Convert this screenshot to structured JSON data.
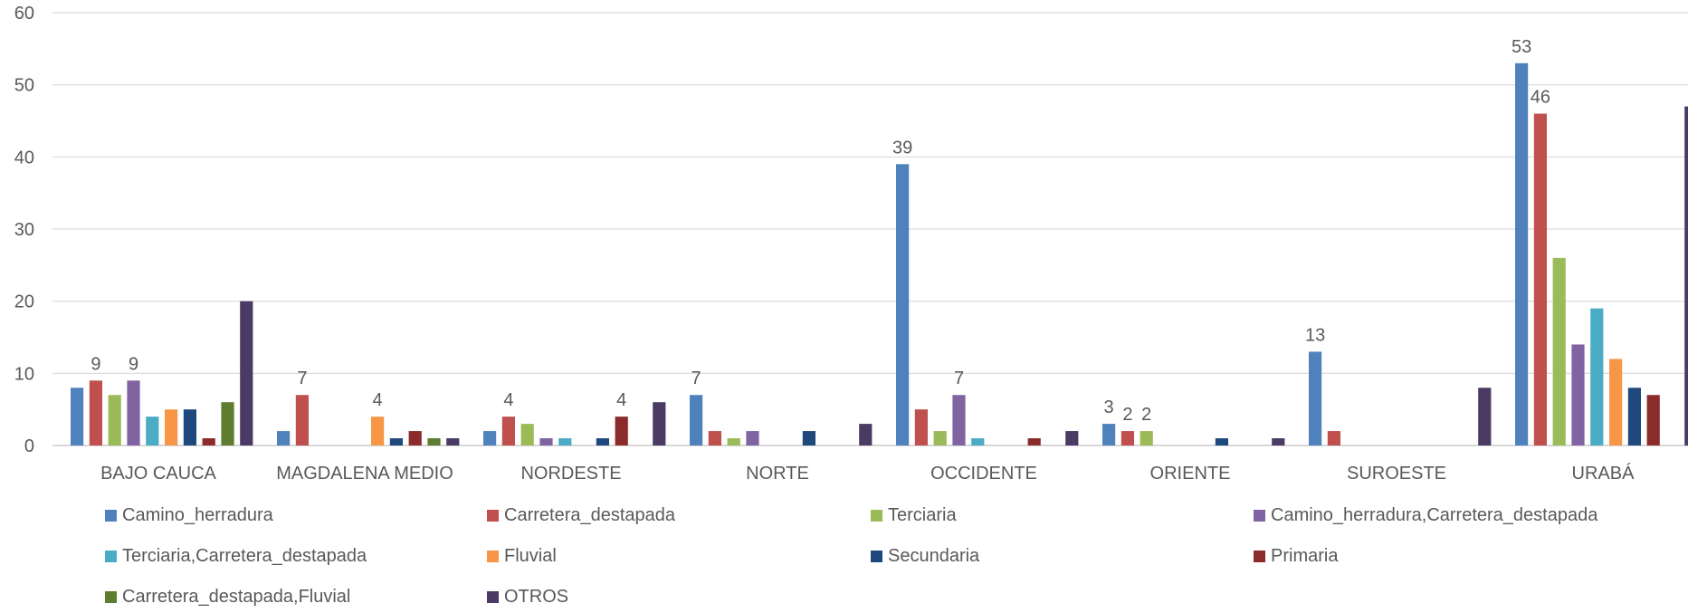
{
  "chart_data": {
    "type": "bar",
    "categories": [
      "BAJO CAUCA",
      "MAGDALENA MEDIO",
      "NORDESTE",
      "NORTE",
      "OCCIDENTE",
      "ORIENTE",
      "SUROESTE",
      "URABÁ"
    ],
    "ylim": [
      0,
      60
    ],
    "yticks": [
      0,
      10,
      20,
      30,
      40,
      50,
      60
    ],
    "grid": true,
    "legend_position": "bottom",
    "series": [
      {
        "name": "Camino_herradura",
        "color": "#4F81BD",
        "values": [
          8,
          2,
          2,
          7,
          39,
          3,
          13,
          53
        ]
      },
      {
        "name": "Carretera_destapada",
        "color": "#C0504D",
        "values": [
          9,
          7,
          4,
          2,
          5,
          2,
          2,
          46
        ]
      },
      {
        "name": "Terciaria",
        "color": "#9BBB59",
        "values": [
          7,
          0,
          3,
          1,
          2,
          2,
          0,
          26
        ]
      },
      {
        "name": "Camino_herradura,Carretera_destapada",
        "color": "#8064A2",
        "values": [
          9,
          0,
          1,
          2,
          7,
          0,
          0,
          14
        ]
      },
      {
        "name": "Terciaria,Carretera_destapada",
        "color": "#4BACC6",
        "values": [
          4,
          0,
          1,
          0,
          1,
          0,
          0,
          19
        ]
      },
      {
        "name": "Fluvial",
        "color": "#F79646",
        "values": [
          5,
          4,
          0,
          0,
          0,
          0,
          0,
          12
        ]
      },
      {
        "name": "Secundaria",
        "color": "#1F497D",
        "values": [
          5,
          1,
          1,
          2,
          0,
          1,
          0,
          8
        ]
      },
      {
        "name": "Primaria",
        "color": "#8B2B2B",
        "values": [
          1,
          2,
          4,
          0,
          1,
          0,
          0,
          7
        ]
      },
      {
        "name": "Carretera_destapada,Fluvial",
        "color": "#5E7D2E",
        "values": [
          6,
          1,
          0,
          0,
          0,
          0,
          0,
          0
        ]
      },
      {
        "name": "OTROS",
        "color": "#4B3A63",
        "values": [
          20,
          1,
          6,
          3,
          2,
          1,
          8,
          47
        ]
      }
    ],
    "data_labels": [
      {
        "category": 0,
        "series": 1,
        "text": "9"
      },
      {
        "category": 0,
        "series": 3,
        "text": "9"
      },
      {
        "category": 1,
        "series": 1,
        "text": "7"
      },
      {
        "category": 1,
        "series": 5,
        "text": "4"
      },
      {
        "category": 2,
        "series": 1,
        "text": "4"
      },
      {
        "category": 2,
        "series": 7,
        "text": "4"
      },
      {
        "category": 3,
        "series": 0,
        "text": "7"
      },
      {
        "category": 4,
        "series": 0,
        "text": "39"
      },
      {
        "category": 4,
        "series": 3,
        "text": "7"
      },
      {
        "category": 5,
        "series": 0,
        "text": "3"
      },
      {
        "category": 5,
        "series": 1,
        "text": "2"
      },
      {
        "category": 5,
        "series": 2,
        "text": "2"
      },
      {
        "category": 6,
        "series": 0,
        "text": "13"
      },
      {
        "category": 7,
        "series": 0,
        "text": "53"
      },
      {
        "category": 7,
        "series": 1,
        "text": "46"
      }
    ]
  }
}
